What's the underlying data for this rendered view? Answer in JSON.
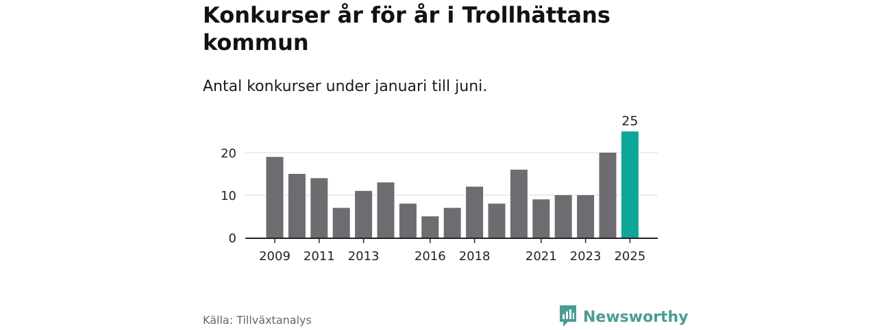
{
  "header": {
    "title": "Konkurser år för år i Trollhättans kommun",
    "subtitle": "Antal konkurser under januari till juni."
  },
  "footer": {
    "source": "Källa: Tillväxtanalys",
    "brand": "Newsworthy",
    "brand_icon": "bar-chart-logo-icon"
  },
  "colors": {
    "bar": "#6d6c70",
    "highlight": "#0fa69a",
    "grid": "#d9d9d9",
    "axis": "#222222",
    "brand": "#4a9d93"
  },
  "chart_data": {
    "type": "bar",
    "x": [
      2009,
      2010,
      2011,
      2012,
      2013,
      2014,
      2015,
      2016,
      2017,
      2018,
      2019,
      2020,
      2021,
      2022,
      2023,
      2024,
      2025
    ],
    "values": [
      19,
      15,
      14,
      7,
      11,
      13,
      8,
      5,
      7,
      12,
      8,
      16,
      9,
      10,
      10,
      20,
      25
    ],
    "x_tick_labels": [
      "2009",
      "2011",
      "2013",
      "2016",
      "2018",
      "2021",
      "2023",
      "2025"
    ],
    "y_ticks": [
      0,
      10,
      20
    ],
    "ylim": [
      0,
      25
    ],
    "highlight_year": 2025,
    "data_labels": [
      {
        "x": 2025,
        "label": "25"
      }
    ],
    "xlabel": "",
    "ylabel": "",
    "grid": true,
    "legend": "none"
  }
}
